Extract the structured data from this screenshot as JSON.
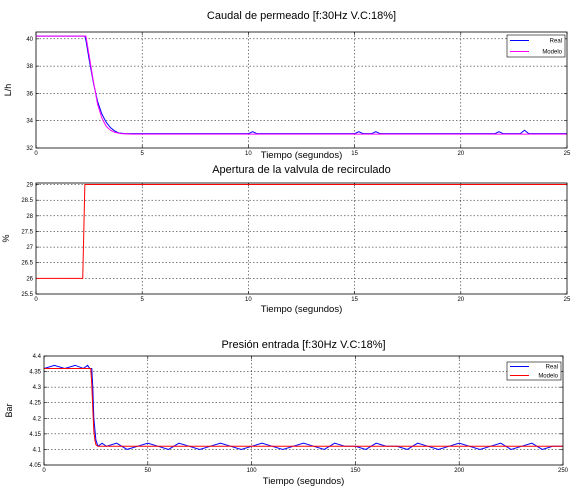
{
  "chart_data": [
    {
      "type": "line",
      "title": "Caudal de permeado  [f:30Hz V.C:18%]",
      "xlabel": "Tiempo (segundos)",
      "ylabel": "L/h",
      "xlim": [
        0,
        25
      ],
      "ylim": [
        32,
        40.5
      ],
      "xticks": [
        0,
        5,
        10,
        15,
        20,
        25
      ],
      "yticks": [
        32,
        34,
        36,
        38,
        40
      ],
      "grid": true,
      "legend_position": "top-right",
      "series": [
        {
          "name": "Real",
          "color": "#0000ff",
          "x": [
            0,
            2.3,
            2.35,
            2.5,
            2.7,
            2.9,
            3.1,
            3.3,
            3.5,
            3.7,
            3.9,
            4.2,
            5,
            10,
            10.2,
            10.4,
            15,
            15.2,
            15.4,
            15.8,
            16.0,
            16.2,
            20,
            21.6,
            21.8,
            22.0,
            22.8,
            23.0,
            23.2,
            25
          ],
          "y": [
            40.2,
            40.2,
            39.9,
            38.5,
            36.8,
            35.4,
            34.5,
            33.9,
            33.5,
            33.25,
            33.1,
            33.05,
            33.05,
            33.05,
            33.2,
            33.05,
            33.05,
            33.2,
            33.05,
            33.05,
            33.2,
            33.05,
            33.05,
            33.05,
            33.2,
            33.05,
            33.05,
            33.3,
            33.05,
            33.05
          ]
        },
        {
          "name": "Modelo",
          "color": "#ff00ff",
          "x": [
            0,
            2.35,
            2.5,
            2.7,
            2.9,
            3.1,
            3.3,
            3.5,
            3.7,
            4.0,
            4.5,
            25
          ],
          "y": [
            40.2,
            40.2,
            38.8,
            36.9,
            35.2,
            34.2,
            33.6,
            33.3,
            33.15,
            33.05,
            33.02,
            33.02
          ]
        }
      ]
    },
    {
      "type": "line",
      "title": "Apertura de la valvula de recirculado",
      "xlabel": "Tiempo (segundos)",
      "ylabel": "%",
      "xlim": [
        0,
        25
      ],
      "ylim": [
        25.5,
        29.05
      ],
      "xticks": [
        0,
        5,
        10,
        15,
        20,
        25
      ],
      "yticks": [
        25.5,
        26,
        26.5,
        27,
        27.5,
        28,
        28.5,
        29
      ],
      "grid": true,
      "series": [
        {
          "color": "#ff0000",
          "x": [
            0,
            2.2,
            2.3,
            25
          ],
          "y": [
            26,
            26,
            29,
            29
          ]
        }
      ]
    },
    {
      "type": "line",
      "title": "Presión entrada [f:30Hz V.C:18%]",
      "xlabel": "Tiempo (segundos)",
      "ylabel": "Bar",
      "xlim": [
        0,
        250
      ],
      "ylim": [
        4.05,
        4.4
      ],
      "xticks": [
        0,
        50,
        100,
        150,
        200,
        250
      ],
      "yticks": [
        4.05,
        4.1,
        4.15,
        4.2,
        4.25,
        4.3,
        4.35,
        4.4
      ],
      "grid": true,
      "legend_position": "top-right",
      "series": [
        {
          "name": "Real",
          "color": "#0000ff",
          "x": [
            0,
            5,
            10,
            15,
            19,
            21,
            22,
            23,
            23.5,
            24,
            25,
            26,
            28,
            30,
            35,
            40,
            45,
            50,
            55,
            60,
            65,
            70,
            75,
            80,
            85,
            90,
            95,
            100,
            105,
            110,
            115,
            120,
            125,
            130,
            135,
            140,
            145,
            150,
            155,
            160,
            165,
            170,
            175,
            180,
            185,
            190,
            195,
            200,
            205,
            210,
            215,
            220,
            225,
            230,
            235,
            240,
            245,
            250
          ],
          "y": [
            4.36,
            4.37,
            4.36,
            4.37,
            4.36,
            4.37,
            4.36,
            4.36,
            4.3,
            4.2,
            4.13,
            4.11,
            4.12,
            4.11,
            4.12,
            4.1,
            4.11,
            4.12,
            4.11,
            4.1,
            4.12,
            4.11,
            4.1,
            4.11,
            4.12,
            4.11,
            4.1,
            4.11,
            4.12,
            4.11,
            4.1,
            4.11,
            4.12,
            4.11,
            4.1,
            4.12,
            4.11,
            4.11,
            4.1,
            4.12,
            4.11,
            4.11,
            4.1,
            4.12,
            4.11,
            4.1,
            4.11,
            4.12,
            4.11,
            4.1,
            4.11,
            4.12,
            4.1,
            4.11,
            4.12,
            4.1,
            4.11,
            4.11
          ]
        },
        {
          "name": "Modelo",
          "color": "#ff0000",
          "x": [
            0,
            22.5,
            23,
            23.5,
            24,
            24.5,
            25,
            26,
            250
          ],
          "y": [
            4.36,
            4.36,
            4.31,
            4.23,
            4.16,
            4.13,
            4.115,
            4.11,
            4.11
          ]
        }
      ]
    }
  ]
}
